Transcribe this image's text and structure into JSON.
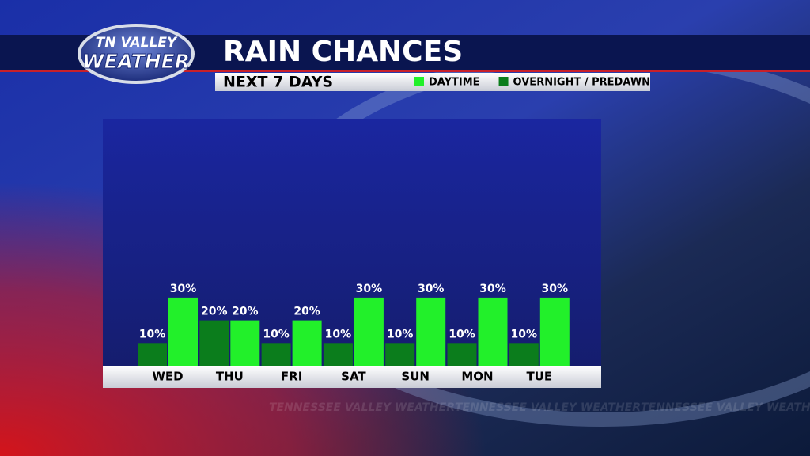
{
  "logo": {
    "line1": "TN VALLEY",
    "line2": "WEATHER"
  },
  "watermark": "TENNESSEE VALLEY WEATHER",
  "chart_data": {
    "type": "bar",
    "title": "RAIN CHANCES",
    "subtitle": "NEXT 7 DAYS",
    "categories": [
      "WED",
      "THU",
      "FRI",
      "SAT",
      "SUN",
      "MON",
      "TUE"
    ],
    "series": [
      {
        "name": "OVERNIGHT / PREDAWN",
        "color": "#0b7d1c",
        "values": [
          10,
          20,
          10,
          10,
          10,
          10,
          10
        ],
        "value_labels": [
          "10%",
          "20%",
          "10%",
          "10%",
          "10%",
          "10%",
          "10%"
        ]
      },
      {
        "name": "DAYTIME",
        "color": "#22f02a",
        "values": [
          30,
          20,
          20,
          30,
          30,
          30,
          30
        ],
        "value_labels": [
          "30%",
          "20%",
          "20%",
          "30%",
          "30%",
          "30%",
          "30%"
        ]
      }
    ],
    "ylim": [
      0,
      100
    ]
  }
}
